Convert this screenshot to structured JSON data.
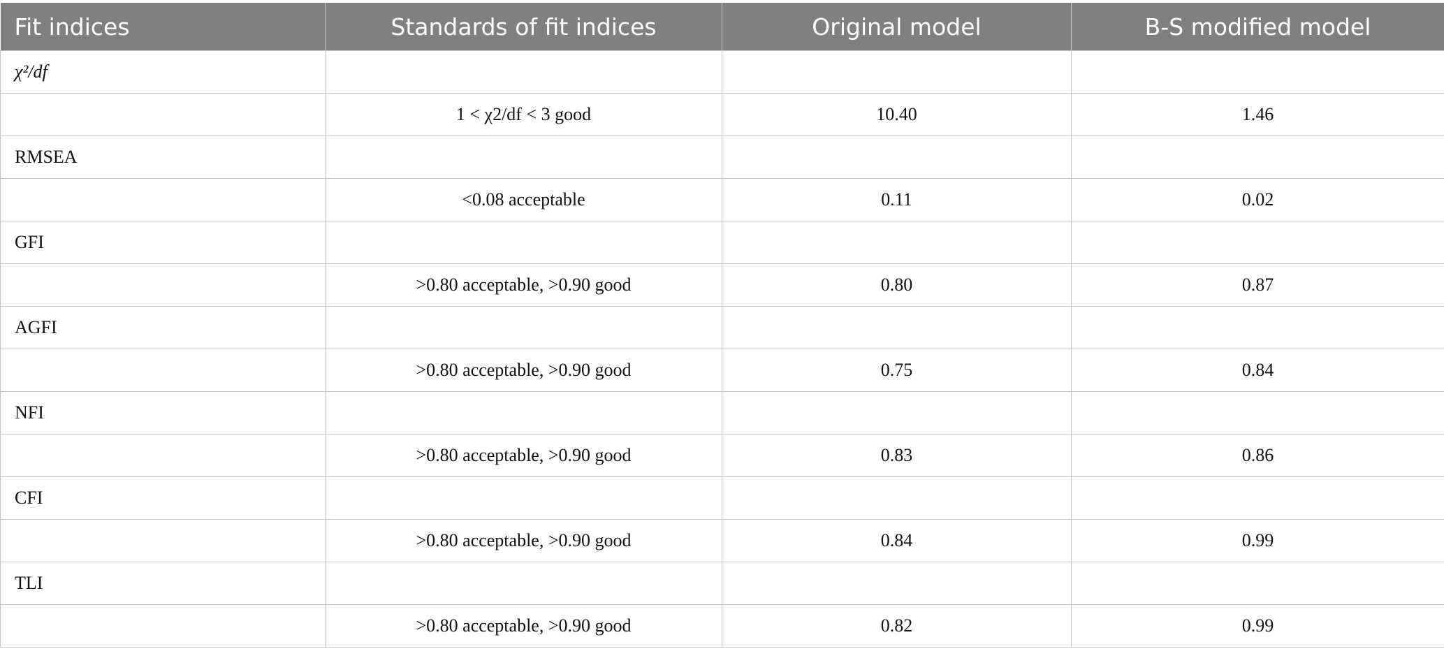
{
  "table": {
    "header": [
      "Fit indices",
      "Standards of fit indices",
      "Original model",
      "B-S modified model"
    ],
    "indices": [
      {
        "name": "χ²/df",
        "standard": "1 < χ2/df < 3 good",
        "original": "10.40",
        "modified": "1.46"
      },
      {
        "name": "RMSEA",
        "standard": "<0.08 acceptable",
        "original": "0.11",
        "modified": "0.02"
      },
      {
        "name": "GFI",
        "standard": ">0.80 acceptable, >0.90 good",
        "original": "0.80",
        "modified": "0.87"
      },
      {
        "name": "AGFI",
        "standard": ">0.80 acceptable, >0.90 good",
        "original": "0.75",
        "modified": "0.84"
      },
      {
        "name": "NFI",
        "standard": ">0.80 acceptable, >0.90 good",
        "original": "0.83",
        "modified": "0.86"
      },
      {
        "name": "CFI",
        "standard": ">0.80 acceptable, >0.90 good",
        "original": "0.84",
        "modified": "0.99"
      },
      {
        "name": "TLI",
        "standard": ">0.80 acceptable, >0.90 good",
        "original": "0.82",
        "modified": "0.99"
      }
    ]
  }
}
